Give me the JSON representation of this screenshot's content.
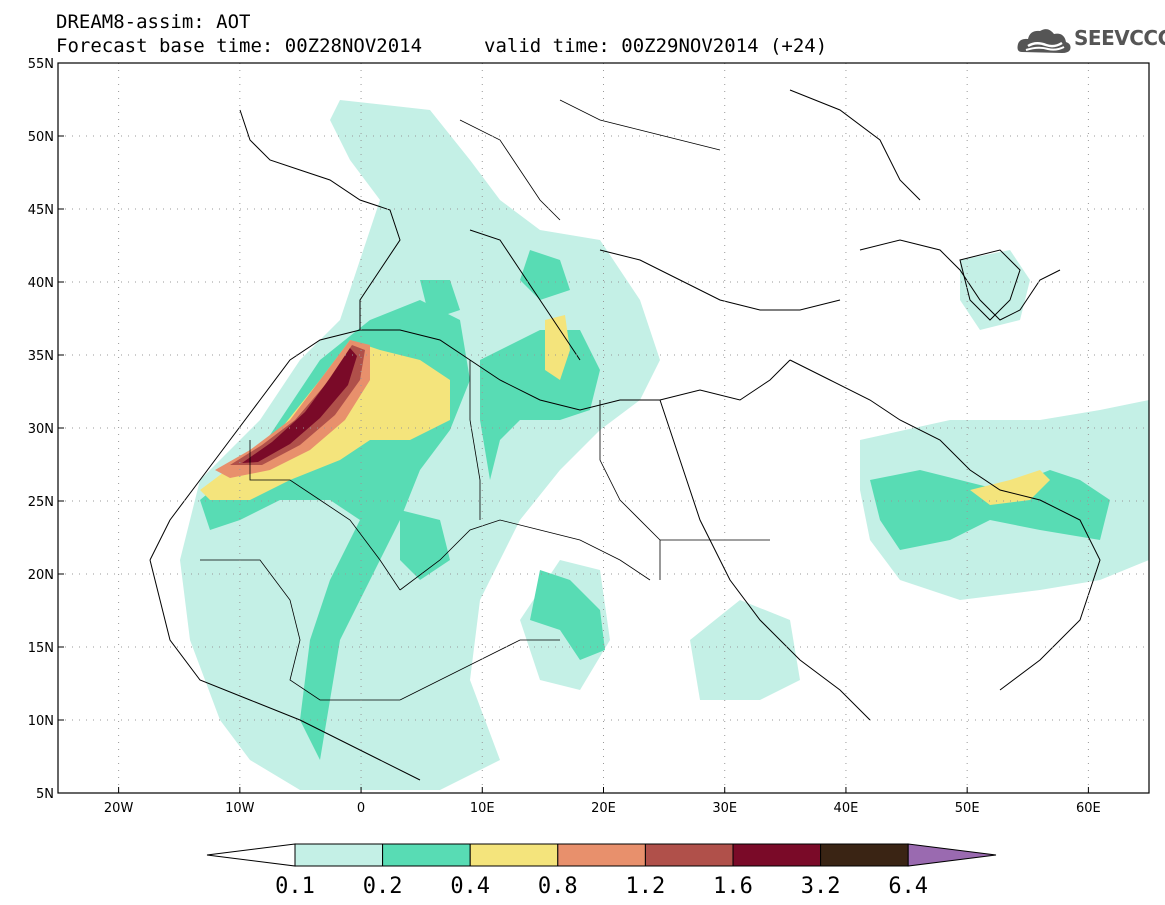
{
  "title": {
    "line1": "DREAM8-assim: AOT",
    "line2": "Forecast base time: 00Z28NOV2014",
    "line3": "valid time: 00Z29NOV2014 (+24)"
  },
  "logo": {
    "text": "SEEVCCC",
    "icon": "cloud-icon"
  },
  "map": {
    "lat_labels": [
      "55N",
      "50N",
      "45N",
      "40N",
      "35N",
      "30N",
      "25N",
      "20N",
      "15N",
      "10N",
      "5N"
    ],
    "lon_labels": [
      "20W",
      "10W",
      "0",
      "10E",
      "20E",
      "30E",
      "40E",
      "50E",
      "60E"
    ],
    "lat_values": [
      55,
      50,
      45,
      40,
      35,
      30,
      25,
      20,
      15,
      10,
      5
    ],
    "lon_values": [
      -20,
      -10,
      0,
      10,
      20,
      30,
      40,
      50,
      60
    ]
  },
  "colorbar": {
    "labels": [
      "0.1",
      "0.2",
      "0.4",
      "0.8",
      "1.2",
      "1.6",
      "3.2",
      "6.4"
    ],
    "colors": [
      "#c4f0e6",
      "#58dcb4",
      "#f4e47c",
      "#e8906c",
      "#b0504a",
      "#7a0a28",
      "#3a2414",
      "#9a6ab0"
    ],
    "under_color": "#ffffff"
  }
}
